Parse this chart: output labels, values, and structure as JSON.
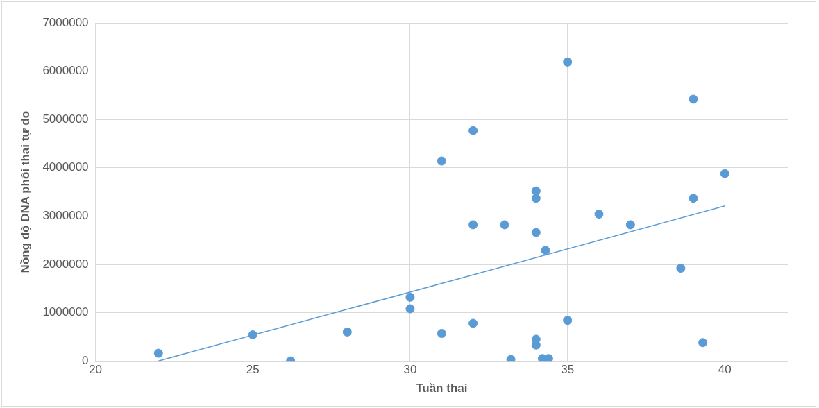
{
  "chart_data": {
    "type": "scatter",
    "xlabel": "Tuần thai",
    "ylabel": "Nồng độ DNA phôi thai tự do",
    "xlim": [
      20,
      42
    ],
    "xticks": [
      20,
      25,
      30,
      35,
      40
    ],
    "ylim": [
      0,
      7000000
    ],
    "yticks": [
      0,
      1000000,
      2000000,
      3000000,
      4000000,
      5000000,
      6000000,
      7000000
    ],
    "grid": true,
    "legend": false,
    "marker": "circle",
    "series": [
      {
        "type": "scatter",
        "color": "#5b9bd5",
        "x": [
          22,
          25,
          26.2,
          28,
          30,
          30,
          31,
          31,
          32,
          32,
          32,
          33,
          33.2,
          34,
          34,
          34,
          34,
          34,
          34.2,
          34.4,
          34.3,
          35,
          35,
          36,
          37,
          38.6,
          39,
          39,
          39.3,
          40
        ],
        "values": [
          160000,
          540000,
          0,
          600000,
          1320000,
          1080000,
          4140000,
          570000,
          4770000,
          2820000,
          780000,
          2820000,
          30000,
          3520000,
          3370000,
          2660000,
          450000,
          330000,
          50000,
          50000,
          2290000,
          6190000,
          840000,
          3040000,
          2820000,
          1920000,
          5420000,
          3370000,
          380000,
          3880000
        ]
      },
      {
        "type": "line",
        "color": "#5b9bd5",
        "x": [
          22,
          40
        ],
        "values": [
          0,
          3210000
        ],
        "marker": "none"
      }
    ]
  }
}
